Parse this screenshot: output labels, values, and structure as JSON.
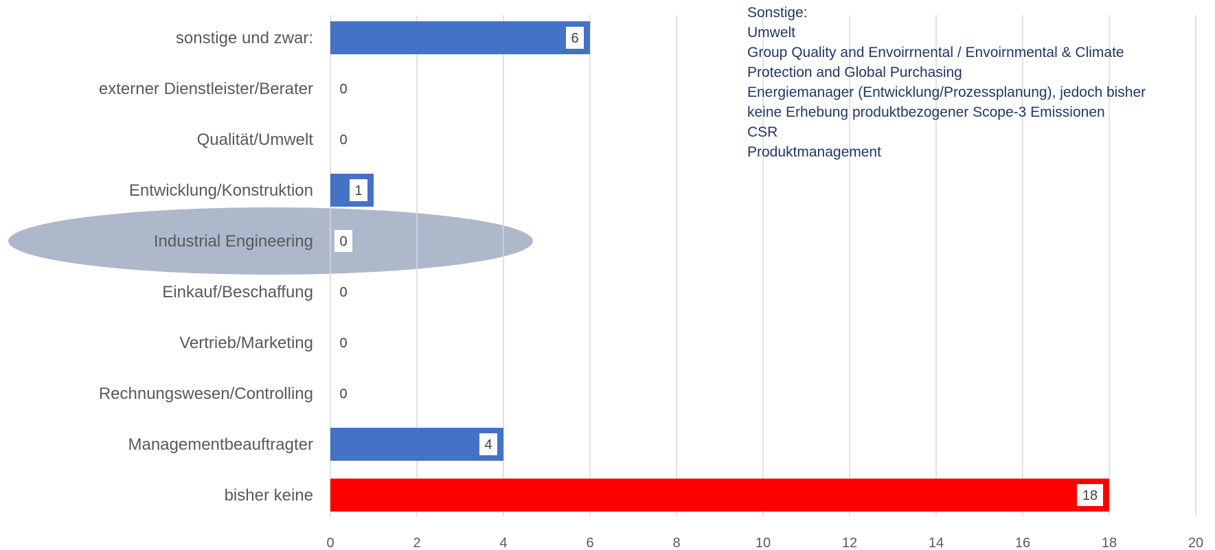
{
  "chart_data": {
    "type": "bar",
    "orientation": "horizontal",
    "categories": [
      "sonstige und zwar:",
      "externer Dienstleister/Berater",
      "Qualität/Umwelt",
      "Entwicklung/Konstruktion",
      "Industrial Engineering",
      "Einkauf/Beschaffung",
      "Vertrieb/Marketing",
      "Rechnungswesen/Controlling",
      "Managementbeauftragter",
      "bisher keine"
    ],
    "values": [
      6,
      0,
      0,
      1,
      0,
      0,
      0,
      0,
      4,
      18
    ],
    "bar_colors": [
      "#4472C4",
      "#4472C4",
      "#4472C4",
      "#4472C4",
      "#4472C4",
      "#4472C4",
      "#4472C4",
      "#4472C4",
      "#4472C4",
      "#FF0000"
    ],
    "xlim": [
      0,
      20
    ],
    "xticks": [
      0,
      2,
      4,
      6,
      8,
      10,
      12,
      14,
      16,
      18,
      20
    ],
    "grid": "vertical",
    "title": "",
    "xlabel": "",
    "ylabel": "",
    "highlight_category": "Industrial Engineering",
    "highlight_color": "#ADB9CA",
    "annotation_lines": [
      "Sonstige:",
      "Umwelt",
      "Group Quality and Envoirrnental / Envoirnmental & Climate",
      "Protection and Global Purchasing",
      "Energiemanager (Entwicklung/Prozessplanung), jedoch bisher",
      "keine Erhebung produktbezogener Scope-3 Emissionen",
      "CSR",
      "Produktmanagement"
    ],
    "annotation_color": "#1F3864"
  }
}
